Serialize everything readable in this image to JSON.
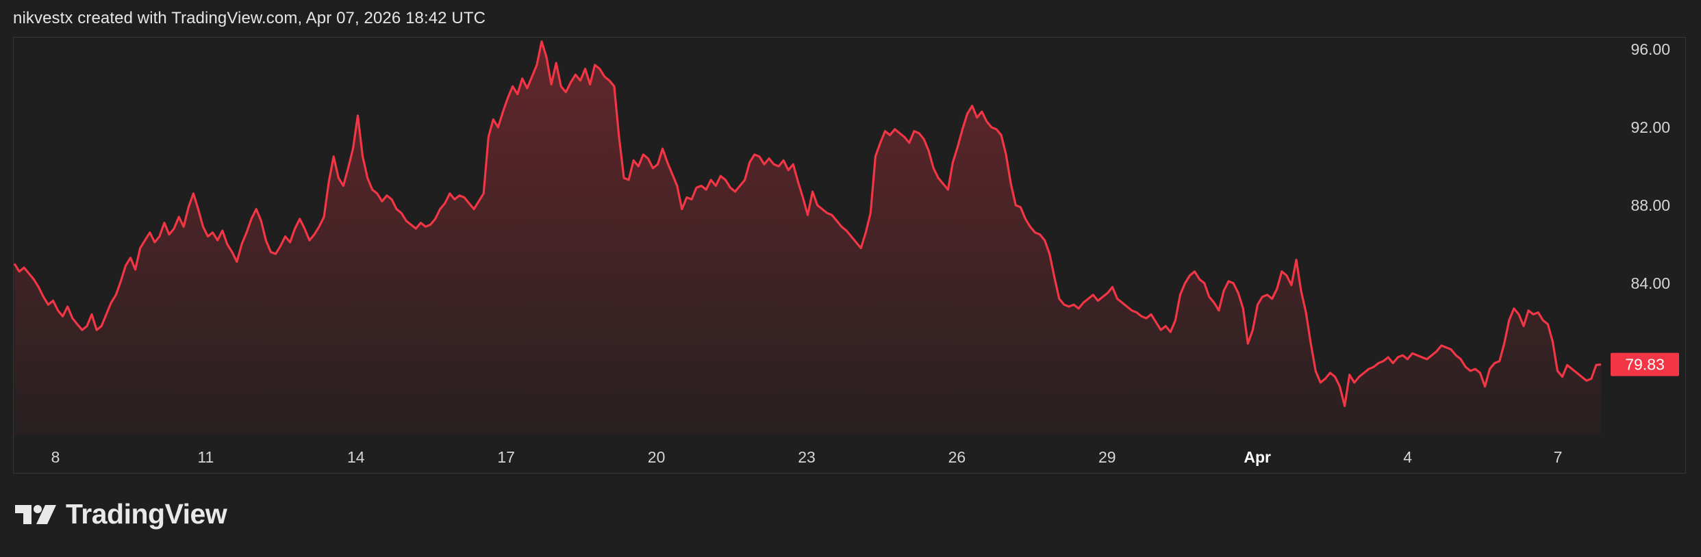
{
  "header": {
    "text": "nikvestx created with TradingView.com, Apr 07, 2026 18:42 UTC"
  },
  "brand": {
    "name": "TradingView"
  },
  "colors": {
    "line": "#f23645",
    "background": "#1f1f1f",
    "grid_border": "#363636",
    "last_price_bg": "#f23645"
  },
  "chart_data": {
    "type": "area",
    "title": "",
    "xlabel": "",
    "ylabel": "",
    "ylim": [
      76.2,
      96.6
    ],
    "y_ticks": [
      "96.00",
      "92.00",
      "88.00",
      "84.00"
    ],
    "x_ticks": [
      {
        "label": "8",
        "bold": false
      },
      {
        "label": "11",
        "bold": false
      },
      {
        "label": "14",
        "bold": false
      },
      {
        "label": "17",
        "bold": false
      },
      {
        "label": "20",
        "bold": false
      },
      {
        "label": "23",
        "bold": false
      },
      {
        "label": "26",
        "bold": false
      },
      {
        "label": "29",
        "bold": false
      },
      {
        "label": "Apr",
        "bold": true
      },
      {
        "label": "4",
        "bold": false
      },
      {
        "label": "7",
        "bold": false
      }
    ],
    "last_value": "79.83",
    "series": [
      {
        "values": [
          85.0,
          84.6,
          84.8,
          84.5,
          84.2,
          83.8,
          83.3,
          82.9,
          83.1,
          82.6,
          82.3,
          82.8,
          82.2,
          81.9,
          81.6,
          81.8,
          82.4,
          81.6,
          81.8,
          82.4,
          83.0,
          83.4,
          84.1,
          84.9,
          85.3,
          84.7,
          85.8,
          86.2,
          86.6,
          86.1,
          86.4,
          87.1,
          86.5,
          86.8,
          87.4,
          86.9,
          87.9,
          88.6,
          87.8,
          86.9,
          86.4,
          86.6,
          86.2,
          86.7,
          86.0,
          85.6,
          85.1,
          86.0,
          86.6,
          87.3,
          87.8,
          87.2,
          86.2,
          85.6,
          85.5,
          85.9,
          86.4,
          86.1,
          86.8,
          87.3,
          86.8,
          86.2,
          86.5,
          86.9,
          87.4,
          89.2,
          90.5,
          89.4,
          89.0,
          89.9,
          90.9,
          92.6,
          90.5,
          89.4,
          88.8,
          88.6,
          88.2,
          88.5,
          88.3,
          87.8,
          87.6,
          87.2,
          87.0,
          86.8,
          87.1,
          86.9,
          87.0,
          87.3,
          87.8,
          88.1,
          88.6,
          88.3,
          88.5,
          88.4,
          88.1,
          87.8,
          88.2,
          88.6,
          91.5,
          92.4,
          92.0,
          92.8,
          93.5,
          94.1,
          93.7,
          94.5,
          94.0,
          94.6,
          95.2,
          96.4,
          95.6,
          94.2,
          95.3,
          94.1,
          93.8,
          94.3,
          94.7,
          94.4,
          95.0,
          94.2,
          95.2,
          95.0,
          94.6,
          94.4,
          94.1,
          91.5,
          89.4,
          89.3,
          90.3,
          90.0,
          90.6,
          90.4,
          89.9,
          90.1,
          90.9,
          90.2,
          89.6,
          89.0,
          87.8,
          88.4,
          88.3,
          88.9,
          89.0,
          88.8,
          89.3,
          89.0,
          89.5,
          89.3,
          88.9,
          88.7,
          89.0,
          89.3,
          90.2,
          90.6,
          90.5,
          90.1,
          90.4,
          90.1,
          90.0,
          90.3,
          89.8,
          90.1,
          89.2,
          88.4,
          87.5,
          88.7,
          88.0,
          87.8,
          87.6,
          87.5,
          87.2,
          86.9,
          86.7,
          86.4,
          86.1,
          85.8,
          86.6,
          87.6,
          90.5,
          91.2,
          91.8,
          91.6,
          91.9,
          91.7,
          91.5,
          91.2,
          91.8,
          91.7,
          91.4,
          90.8,
          89.9,
          89.4,
          89.1,
          88.8,
          90.2,
          91.0,
          91.9,
          92.7,
          93.1,
          92.5,
          92.8,
          92.3,
          92.0,
          91.9,
          91.6,
          90.6,
          89.1,
          88.0,
          87.9,
          87.3,
          86.9,
          86.6,
          86.5,
          86.2,
          85.5,
          84.3,
          83.2,
          82.9,
          82.8,
          82.9,
          82.7,
          83.0,
          83.2,
          83.4,
          83.1,
          83.3,
          83.5,
          83.8,
          83.2,
          83.0,
          82.8,
          82.6,
          82.5,
          82.3,
          82.2,
          82.4,
          82.0,
          81.6,
          81.8,
          81.5,
          82.1,
          83.4,
          84.0,
          84.4,
          84.6,
          84.2,
          84.0,
          83.3,
          83.0,
          82.6,
          83.6,
          84.1,
          84.0,
          83.5,
          82.7,
          80.9,
          81.6,
          82.9,
          83.3,
          83.4,
          83.2,
          83.7,
          84.6,
          84.4,
          83.9,
          85.2,
          83.6,
          82.5,
          80.9,
          79.5,
          78.9,
          79.1,
          79.4,
          79.2,
          78.7,
          77.7,
          79.3,
          78.9,
          79.2,
          79.4,
          79.6,
          79.7,
          79.9,
          80.0,
          80.2,
          79.9,
          80.2,
          80.3,
          80.1,
          80.4,
          80.3,
          80.2,
          80.1,
          80.3,
          80.5,
          80.8,
          80.7,
          80.6,
          80.3,
          80.1,
          79.7,
          79.5,
          79.6,
          79.4,
          78.7,
          79.6,
          79.9,
          80.0,
          80.9,
          82.1,
          82.7,
          82.4,
          81.8,
          82.6,
          82.4,
          82.5,
          82.1,
          81.9,
          81.0,
          79.5,
          79.2,
          79.8,
          79.6,
          79.4,
          79.2,
          79.0,
          79.1,
          79.8,
          79.83
        ]
      }
    ]
  }
}
